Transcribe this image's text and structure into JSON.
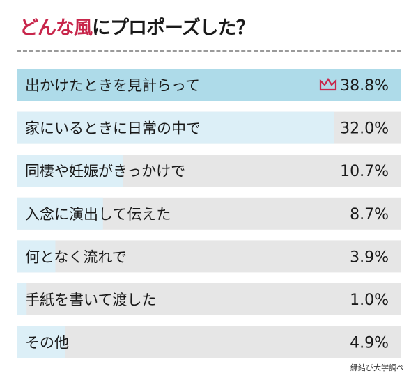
{
  "title": {
    "accent": "どんな風",
    "rest": "にプロポーズした？"
  },
  "source": "縁結び大学調べ",
  "colors": {
    "accent": "#c8264b",
    "bar_top": "#aedbe9",
    "bar": "#dceff7",
    "track": "#e6e6e6",
    "divider": "#9a9a9a"
  },
  "top_marker_icon": "crown-icon",
  "chart_data": {
    "type": "bar",
    "orientation": "horizontal",
    "title": "どんな風にプロポーズした？",
    "categories": [
      "出かけたときを見計らって",
      "家にいるときに日常の中で",
      "同棲や妊娠がきっかけで",
      "入念に演出して伝えた",
      "何となく流れで",
      "手紙を書いて渡した",
      "その他"
    ],
    "values": [
      38.8,
      32.0,
      10.7,
      8.7,
      3.9,
      1.0,
      4.9
    ],
    "value_labels": [
      "38.8%",
      "32.0%",
      "10.7%",
      "8.7%",
      "3.9%",
      "1.0%",
      "4.9%"
    ],
    "unit": "%",
    "xlim": [
      0,
      38.8
    ],
    "grid": false,
    "legend": "none"
  }
}
